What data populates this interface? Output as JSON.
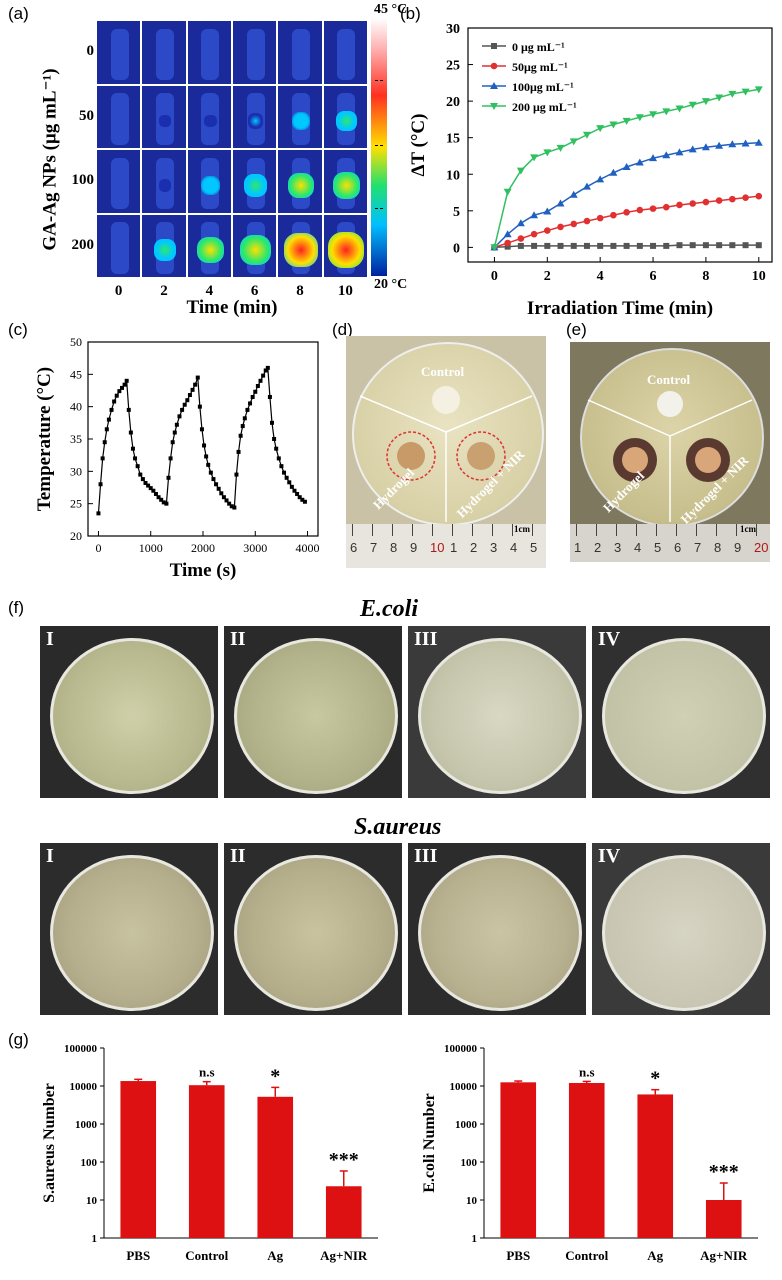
{
  "panels": {
    "a": "(a)",
    "b": "(b)",
    "c": "(c)",
    "d": "(d)",
    "e": "(e)",
    "f": "(f)",
    "g": "(g)"
  },
  "thermal": {
    "ylabel": "GA-Ag NPs (μg mL⁻¹)",
    "xlabel": "Time (min)",
    "rows": [
      "0",
      "50",
      "100",
      "200"
    ],
    "cols": [
      "0",
      "2",
      "4",
      "6",
      "8",
      "10"
    ],
    "scale_max": "45 °C",
    "scale_min": "20 °C",
    "intensity": [
      [
        0,
        0,
        0,
        0,
        0,
        0
      ],
      [
        0,
        0.05,
        0.1,
        0.2,
        0.3,
        0.4
      ],
      [
        0,
        0.1,
        0.35,
        0.5,
        0.6,
        0.65
      ],
      [
        0,
        0.45,
        0.65,
        0.8,
        0.9,
        1.0
      ]
    ],
    "colors": {
      "cold": "#1a2fb0",
      "cyan": "#00c8ff",
      "green": "#2ee86a",
      "yellow": "#ffe000",
      "red": "#ff2020"
    }
  },
  "dishes": {
    "d": {
      "control": "Control",
      "hydrogel": "Hydrogel",
      "hydrogel_nir": "Hydrogel + NIR",
      "scale": "1cm",
      "ruler": [
        "6",
        "7",
        "8",
        "9",
        "10",
        "1",
        "2",
        "3",
        "4",
        "5"
      ]
    },
    "e": {
      "control": "Control",
      "hydrogel": "Hydrogel",
      "hydrogel_nir": "Hydrogel + NIR",
      "scale": "1cm",
      "ruler": [
        "1",
        "2",
        "3",
        "4",
        "5",
        "6",
        "7",
        "8",
        "9",
        "20"
      ]
    }
  },
  "plates": {
    "ecoli_title": "E.coli",
    "saureus_title": "S.aureus",
    "labels": [
      "I",
      "II",
      "III",
      "IV"
    ]
  },
  "chart_data": [
    {
      "id": "b",
      "type": "line",
      "xlabel": "Irradiation Time (min)",
      "ylabel": "ΔT (°C)",
      "xlim": [
        -1,
        10.5
      ],
      "ylim": [
        -2,
        30
      ],
      "xticks": [
        0,
        2,
        4,
        6,
        8,
        10
      ],
      "yticks": [
        0,
        5,
        10,
        15,
        20,
        25,
        30
      ],
      "x": [
        0,
        0.5,
        1,
        1.5,
        2,
        2.5,
        3,
        3.5,
        4,
        4.5,
        5,
        5.5,
        6,
        6.5,
        7,
        7.5,
        8,
        8.5,
        9,
        9.5,
        10
      ],
      "series": [
        {
          "name": "0 μg mL⁻¹",
          "color": "#555555",
          "marker": "square",
          "values": [
            0,
            0.1,
            0.2,
            0.2,
            0.2,
            0.2,
            0.2,
            0.2,
            0.2,
            0.2,
            0.2,
            0.2,
            0.2,
            0.2,
            0.3,
            0.3,
            0.3,
            0.3,
            0.3,
            0.3,
            0.3
          ]
        },
        {
          "name": "50μg mL⁻¹",
          "color": "#e03030",
          "marker": "circle",
          "values": [
            0,
            0.6,
            1.2,
            1.8,
            2.3,
            2.8,
            3.2,
            3.6,
            4.0,
            4.4,
            4.8,
            5.1,
            5.3,
            5.5,
            5.8,
            6.0,
            6.2,
            6.4,
            6.6,
            6.8,
            7.0
          ]
        },
        {
          "name": "100μg mL⁻¹",
          "color": "#2060c0",
          "marker": "triangle-up",
          "values": [
            0,
            1.8,
            3.3,
            4.4,
            4.9,
            6.0,
            7.2,
            8.3,
            9.3,
            10.2,
            11.0,
            11.6,
            12.2,
            12.6,
            13.0,
            13.4,
            13.7,
            13.9,
            14.1,
            14.2,
            14.3
          ]
        },
        {
          "name": "200 μg mL⁻¹",
          "color": "#30c060",
          "marker": "triangle-down",
          "values": [
            0,
            7.6,
            10.5,
            12.3,
            13.0,
            13.6,
            14.5,
            15.4,
            16.3,
            16.8,
            17.3,
            17.8,
            18.2,
            18.6,
            19.0,
            19.5,
            20.0,
            20.5,
            21.0,
            21.3,
            21.6
          ]
        }
      ],
      "legend": "top-left"
    },
    {
      "id": "c",
      "type": "line",
      "xlabel": "Time (s)",
      "ylabel": "Temperature (°C)",
      "xlim": [
        -200,
        4200
      ],
      "ylim": [
        20,
        50
      ],
      "xticks": [
        0,
        1000,
        2000,
        3000,
        4000
      ],
      "yticks": [
        20,
        25,
        30,
        35,
        40,
        45,
        50
      ],
      "color": "#000000",
      "x": [
        0,
        40,
        80,
        120,
        160,
        200,
        250,
        300,
        350,
        400,
        450,
        500,
        540,
        580,
        620,
        660,
        700,
        750,
        800,
        850,
        900,
        950,
        1000,
        1050,
        1100,
        1150,
        1200,
        1250,
        1300,
        1340,
        1380,
        1420,
        1460,
        1500,
        1550,
        1600,
        1650,
        1700,
        1750,
        1800,
        1850,
        1900,
        1940,
        1980,
        2020,
        2060,
        2100,
        2150,
        2200,
        2250,
        2300,
        2350,
        2400,
        2450,
        2500,
        2550,
        2600,
        2640,
        2680,
        2720,
        2760,
        2800,
        2850,
        2900,
        2950,
        3000,
        3050,
        3100,
        3150,
        3200,
        3240,
        3280,
        3320,
        3360,
        3400,
        3450,
        3500,
        3550,
        3600,
        3650,
        3700,
        3750,
        3800,
        3850,
        3900,
        3950
      ],
      "values": [
        23.5,
        28,
        32,
        34.5,
        36.5,
        38,
        39.5,
        40.8,
        41.7,
        42.4,
        42.9,
        43.4,
        44.0,
        39.5,
        36,
        33.5,
        32,
        30.8,
        29.5,
        28.8,
        28.2,
        27.8,
        27.4,
        27.0,
        26.5,
        26.0,
        25.6,
        25.2,
        25.0,
        29,
        32,
        34.5,
        36,
        37.2,
        38.5,
        39.5,
        40.3,
        41.0,
        41.8,
        42.6,
        43.4,
        44.5,
        40,
        36.5,
        34,
        32.3,
        31,
        29.8,
        28.8,
        28.0,
        27.3,
        26.6,
        26.0,
        25.5,
        25.0,
        24.6,
        24.4,
        29.5,
        33,
        35.5,
        37,
        38.2,
        39.5,
        40.5,
        41.5,
        42.3,
        43.2,
        44.0,
        44.8,
        45.6,
        46.0,
        41.5,
        37.5,
        35,
        33.5,
        32,
        30.8,
        29.8,
        29.0,
        28.3,
        27.6,
        27.0,
        26.5,
        26.0,
        25.6,
        25.3
      ]
    },
    {
      "id": "g-left",
      "type": "bar",
      "ylabel": "S.aureus Number",
      "yscale": "log",
      "ylim": [
        1,
        100000
      ],
      "yticks": [
        "1",
        "10",
        "100",
        "1000",
        "10000",
        "100000"
      ],
      "categories": [
        "PBS",
        "Control",
        "Ag",
        "Ag+NIR"
      ],
      "values": [
        13500,
        10500,
        5200,
        23
      ],
      "errors": [
        1500,
        2500,
        4000,
        35
      ],
      "significance": [
        "",
        "n.s",
        "*",
        "***"
      ],
      "color": "#dd1111"
    },
    {
      "id": "g-right",
      "type": "bar",
      "ylabel": "E.coli Number",
      "yscale": "log",
      "ylim": [
        1,
        100000
      ],
      "yticks": [
        "1",
        "10",
        "100",
        "1000",
        "10000",
        "100000"
      ],
      "categories": [
        "PBS",
        "Control",
        "Ag",
        "Ag+NIR"
      ],
      "values": [
        12500,
        12000,
        6000,
        10
      ],
      "errors": [
        1000,
        1200,
        2000,
        18
      ],
      "significance": [
        "",
        "n.s",
        "*",
        "***"
      ],
      "color": "#dd1111"
    }
  ]
}
